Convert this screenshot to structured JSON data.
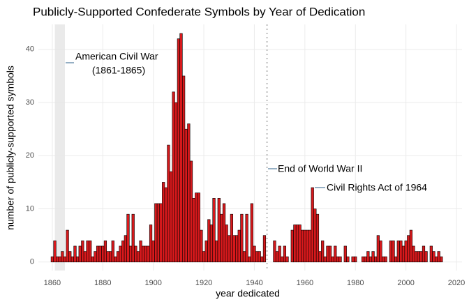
{
  "chart_data": {
    "type": "bar",
    "title": "Publicly-Supported Confederate Symbols by Year of Dedication",
    "x_label": "year dedicated",
    "y_label": "number of publicly-supported symbols",
    "color": "#d7191c",
    "xlim": [
      1854.5,
      2022.2
    ],
    "ylim": [
      -1.6,
      44.7
    ],
    "xticks": [
      1860,
      1880,
      1900,
      1920,
      1940,
      1960,
      1980,
      2000,
      2020
    ],
    "yticks": [
      0,
      10,
      20,
      30,
      40
    ],
    "grid": true,
    "x": [
      1860,
      1861,
      1862,
      1863,
      1864,
      1865,
      1866,
      1867,
      1868,
      1869,
      1870,
      1871,
      1872,
      1873,
      1874,
      1875,
      1876,
      1877,
      1878,
      1879,
      1880,
      1881,
      1882,
      1883,
      1884,
      1885,
      1886,
      1887,
      1888,
      1889,
      1890,
      1891,
      1892,
      1893,
      1894,
      1895,
      1896,
      1897,
      1898,
      1899,
      1900,
      1901,
      1902,
      1903,
      1904,
      1905,
      1906,
      1907,
      1908,
      1909,
      1910,
      1911,
      1912,
      1913,
      1914,
      1915,
      1916,
      1917,
      1918,
      1919,
      1920,
      1921,
      1922,
      1923,
      1924,
      1925,
      1926,
      1927,
      1928,
      1929,
      1930,
      1931,
      1932,
      1933,
      1934,
      1935,
      1936,
      1937,
      1938,
      1939,
      1940,
      1941,
      1942,
      1943,
      1944,
      1945,
      1946,
      1947,
      1948,
      1949,
      1950,
      1951,
      1952,
      1953,
      1954,
      1955,
      1956,
      1957,
      1958,
      1959,
      1960,
      1961,
      1962,
      1963,
      1964,
      1965,
      1966,
      1967,
      1968,
      1969,
      1970,
      1971,
      1972,
      1973,
      1974,
      1975,
      1976,
      1977,
      1978,
      1979,
      1980,
      1981,
      1982,
      1983,
      1984,
      1985,
      1986,
      1987,
      1988,
      1989,
      1990,
      1991,
      1992,
      1993,
      1994,
      1995,
      1996,
      1997,
      1998,
      1999,
      2000,
      2001,
      2002,
      2003,
      2004,
      2005,
      2006,
      2007,
      2008,
      2009,
      2010,
      2011,
      2012,
      2013,
      2014
    ],
    "values": [
      1,
      4,
      1,
      1,
      2,
      1,
      6,
      2,
      1,
      3,
      1,
      3,
      4,
      2,
      4,
      4,
      1,
      2,
      3,
      3,
      3,
      4,
      2,
      2,
      4,
      1,
      2,
      3,
      4,
      5,
      9,
      3,
      9,
      3,
      2,
      4,
      3,
      3,
      3,
      7,
      4,
      11,
      11,
      11,
      15,
      14,
      22,
      17,
      32,
      30,
      42,
      43,
      35,
      25,
      26,
      19,
      12,
      13,
      13,
      6,
      2,
      4,
      8,
      7,
      12,
      4,
      12,
      9,
      11,
      7,
      5,
      9,
      5,
      5,
      6,
      9,
      2,
      9,
      1,
      11,
      3,
      2,
      2,
      1,
      5,
      0,
      0,
      0,
      4,
      2,
      3,
      1,
      3,
      1,
      0,
      6,
      7,
      7,
      7,
      6,
      6,
      6,
      6,
      14,
      10,
      9,
      2,
      4,
      1,
      3,
      3,
      1,
      3,
      1,
      1,
      0,
      3,
      1,
      0,
      1,
      1,
      0,
      0,
      1,
      1,
      2,
      1,
      2,
      1,
      5,
      4,
      1,
      1,
      0,
      4,
      4,
      1,
      4,
      4,
      3,
      4,
      5,
      6,
      3,
      2,
      2,
      2,
      3,
      2,
      0,
      3,
      2,
      1,
      2,
      1
    ],
    "shade": [
      1861,
      1865
    ],
    "vline": 1945,
    "annotations": [
      "American Civil War",
      "(1861-1865)",
      "End of World War II",
      "Civil Rights Act of 1964"
    ]
  }
}
